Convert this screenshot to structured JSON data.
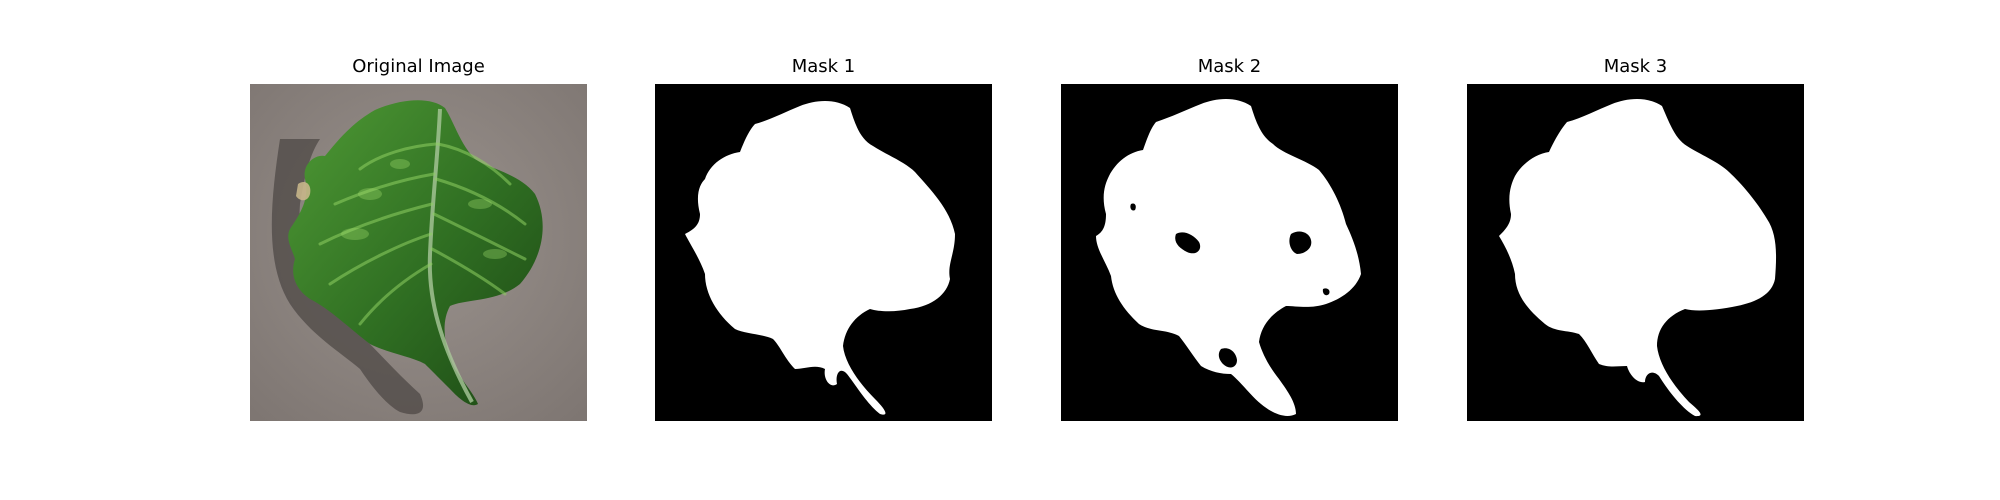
{
  "figure": {
    "panels": [
      {
        "title": "Original Image",
        "kind": "photo"
      },
      {
        "title": "Mask 1",
        "kind": "mask"
      },
      {
        "title": "Mask 2",
        "kind": "mask"
      },
      {
        "title": "Mask 3",
        "kind": "mask"
      }
    ]
  },
  "colors": {
    "mask_background": "#000000",
    "mask_foreground": "#ffffff",
    "photo_ground": "#8f8783",
    "leaf_dark": "#1f4d17",
    "leaf_mid": "#3f8a2c",
    "leaf_light": "#7cbf4e"
  }
}
